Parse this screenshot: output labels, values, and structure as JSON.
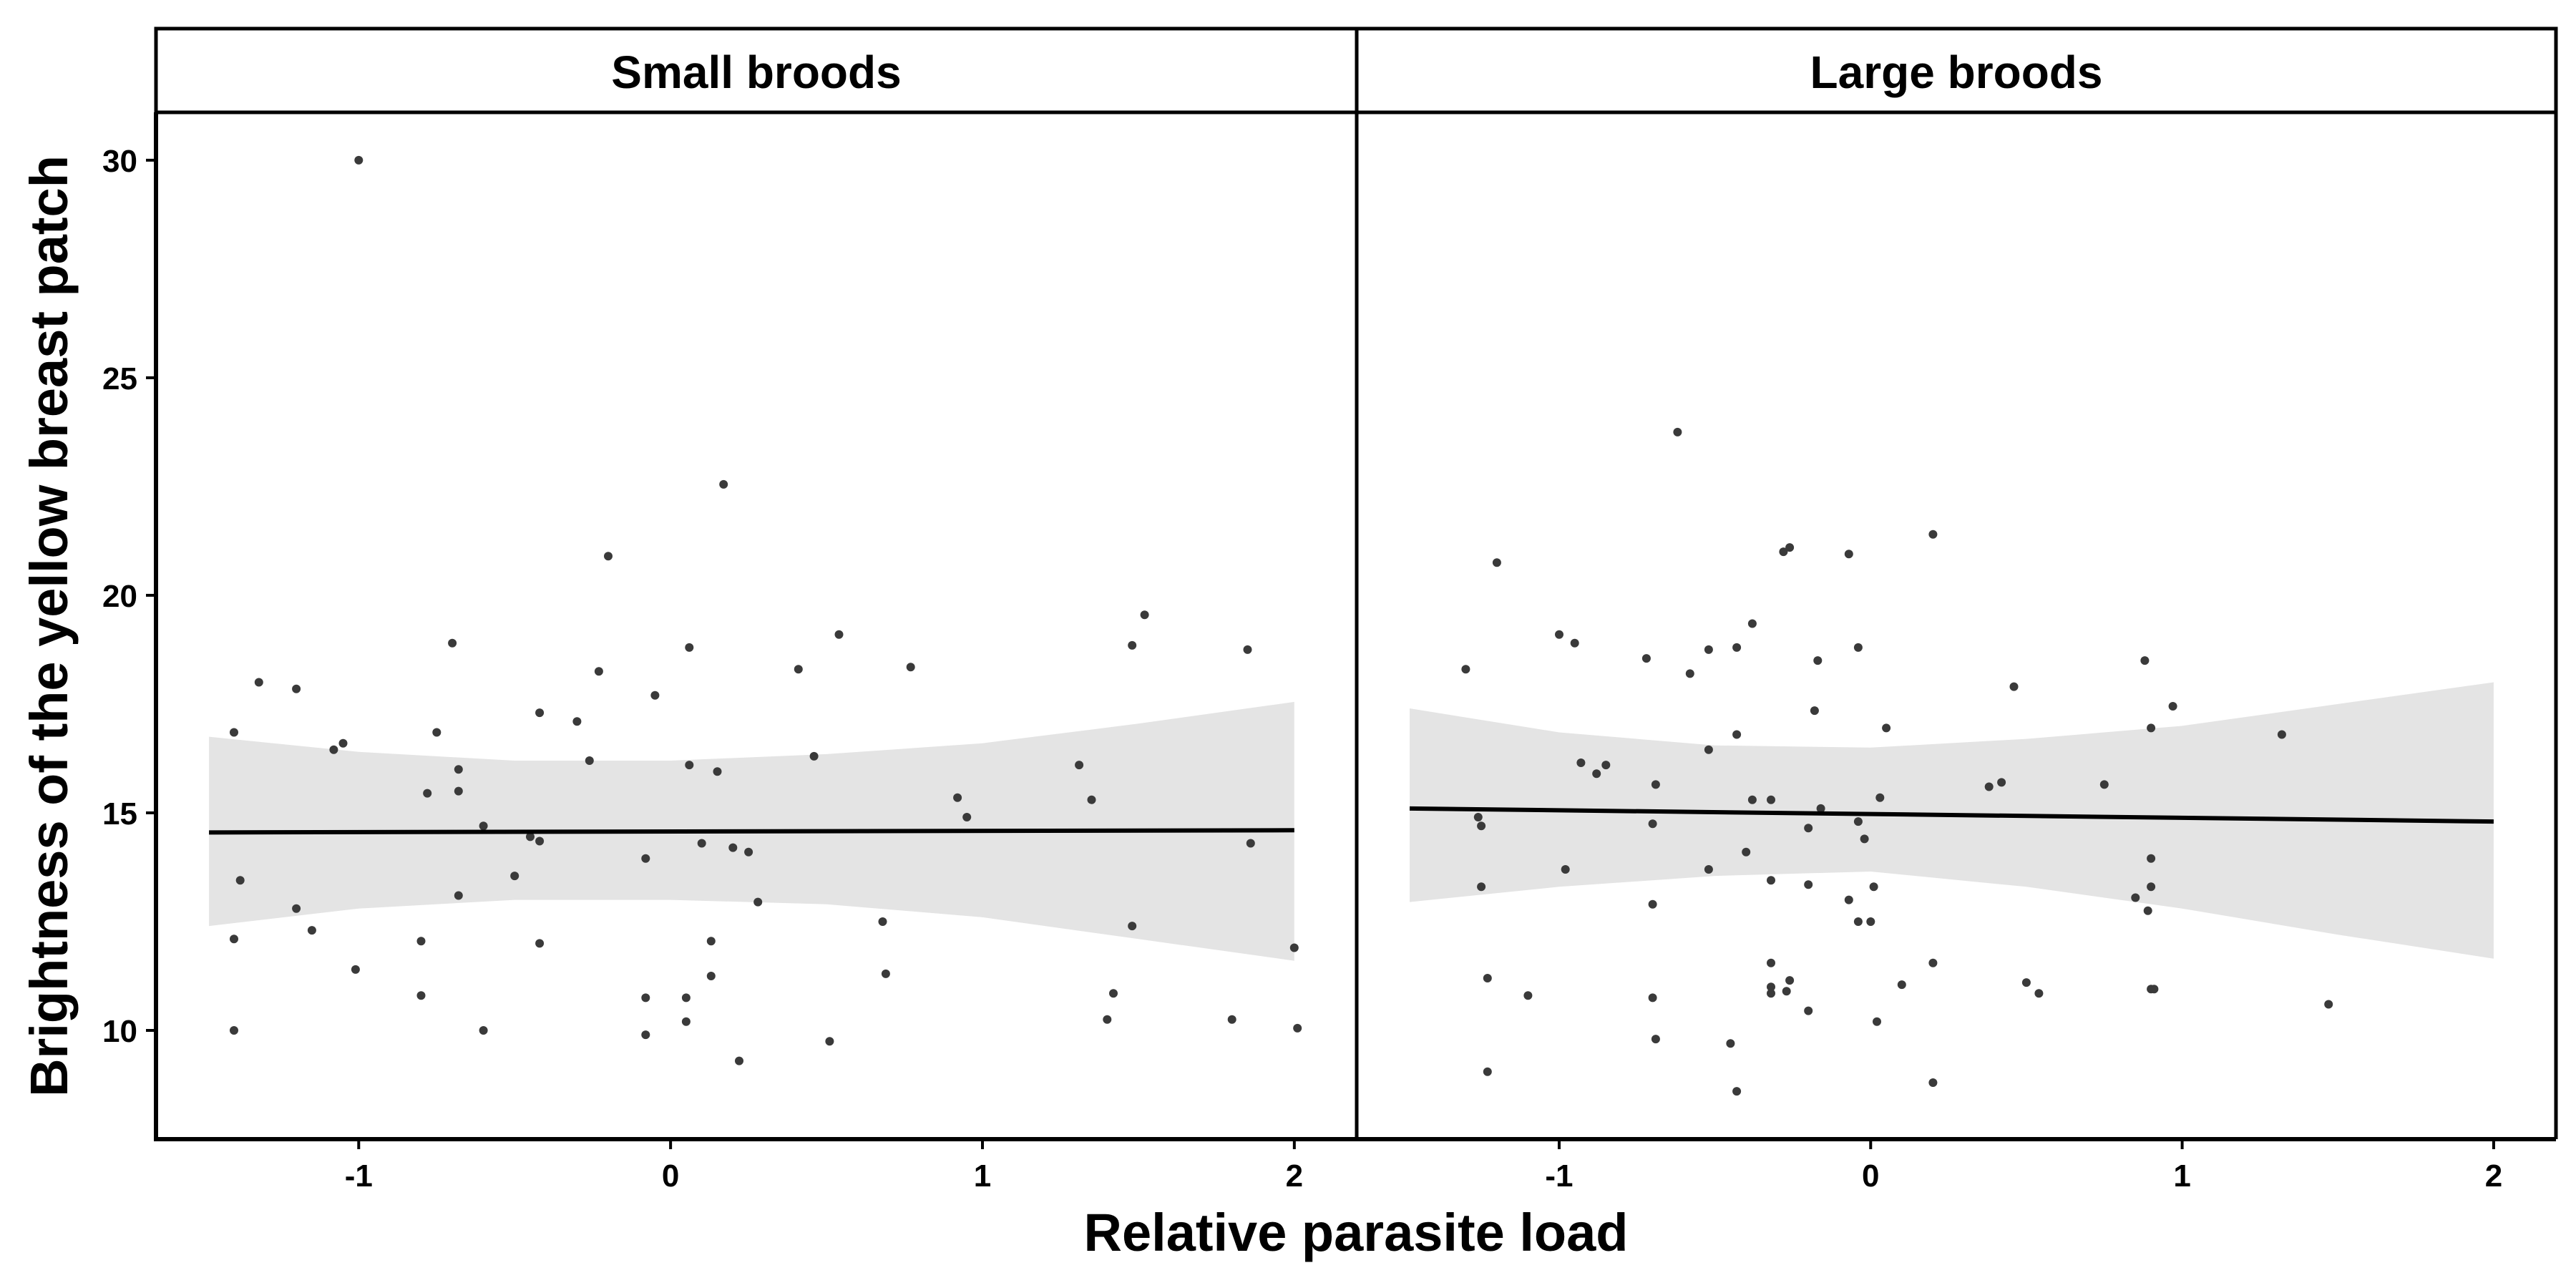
{
  "chart_data": {
    "type": "scatter",
    "xlabel": "Relative parasite load",
    "ylabel": "Brightness of the yellow breast patch",
    "xlim": [
      -1.65,
      2.2
    ],
    "ylim": [
      7.5,
      31.1
    ],
    "x_ticks": [
      -1,
      0,
      1,
      2
    ],
    "y_ticks": [
      10,
      15,
      20,
      25,
      30
    ],
    "grid": false,
    "legend": "none",
    "colors": {
      "point": "#3a3a3a",
      "line": "#000000",
      "band": "#e4e4e4"
    },
    "panels": [
      {
        "title": "Small broods",
        "fit": {
          "x": [
            -1.48,
            2.0
          ],
          "y": [
            14.55,
            14.6
          ]
        },
        "band": {
          "x": [
            -1.48,
            -1.0,
            -0.5,
            0,
            0.5,
            1.0,
            1.5,
            2.0
          ],
          "lower": [
            12.4,
            12.8,
            13.0,
            13.0,
            12.9,
            12.6,
            12.1,
            11.6
          ],
          "upper": [
            16.75,
            16.4,
            16.2,
            16.2,
            16.35,
            16.6,
            17.05,
            17.55
          ]
        },
        "points": [
          [
            -1.0,
            30.0
          ],
          [
            -1.4,
            16.85
          ],
          [
            -1.38,
            13.45
          ],
          [
            -1.4,
            12.1
          ],
          [
            -1.4,
            10.0
          ],
          [
            -1.32,
            18.0
          ],
          [
            -1.2,
            17.85
          ],
          [
            -1.2,
            12.8
          ],
          [
            -1.15,
            12.3
          ],
          [
            -1.08,
            16.45
          ],
          [
            -1.05,
            16.6
          ],
          [
            -1.01,
            11.4
          ],
          [
            -0.8,
            12.05
          ],
          [
            -0.8,
            10.8
          ],
          [
            -0.78,
            15.45
          ],
          [
            -0.75,
            16.85
          ],
          [
            -0.7,
            18.9
          ],
          [
            -0.68,
            16.0
          ],
          [
            -0.68,
            15.5
          ],
          [
            -0.68,
            13.1
          ],
          [
            -0.6,
            14.7
          ],
          [
            -0.6,
            10.0
          ],
          [
            -0.5,
            13.55
          ],
          [
            -0.45,
            14.45
          ],
          [
            -0.42,
            14.35
          ],
          [
            -0.42,
            17.3
          ],
          [
            -0.42,
            12.0
          ],
          [
            -0.3,
            17.1
          ],
          [
            -0.26,
            16.2
          ],
          [
            -0.23,
            18.25
          ],
          [
            -0.2,
            20.9
          ],
          [
            -0.08,
            10.75
          ],
          [
            -0.08,
            9.9
          ],
          [
            -0.08,
            13.95
          ],
          [
            -0.05,
            17.7
          ],
          [
            0.05,
            10.75
          ],
          [
            0.05,
            10.2
          ],
          [
            0.06,
            16.1
          ],
          [
            0.06,
            18.8
          ],
          [
            0.1,
            14.3
          ],
          [
            0.13,
            11.25
          ],
          [
            0.13,
            12.05
          ],
          [
            0.15,
            15.95
          ],
          [
            0.17,
            22.55
          ],
          [
            0.2,
            14.2
          ],
          [
            0.22,
            9.3
          ],
          [
            0.25,
            14.1
          ],
          [
            0.28,
            12.95
          ],
          [
            0.41,
            18.3
          ],
          [
            0.46,
            16.3
          ],
          [
            0.51,
            9.75
          ],
          [
            0.54,
            19.1
          ],
          [
            0.68,
            12.5
          ],
          [
            0.69,
            11.3
          ],
          [
            0.77,
            18.35
          ],
          [
            0.92,
            15.35
          ],
          [
            0.95,
            14.9
          ],
          [
            1.31,
            16.1
          ],
          [
            1.35,
            15.3
          ],
          [
            1.4,
            10.25
          ],
          [
            1.42,
            10.85
          ],
          [
            1.48,
            18.85
          ],
          [
            1.48,
            12.4
          ],
          [
            1.52,
            19.55
          ],
          [
            1.8,
            10.25
          ],
          [
            1.85,
            18.75
          ],
          [
            1.86,
            14.3
          ],
          [
            2.0,
            11.9
          ],
          [
            2.01,
            10.05
          ]
        ]
      },
      {
        "title": "Large broods",
        "fit": {
          "x": [
            -1.48,
            2.0
          ],
          "y": [
            15.1,
            14.8
          ]
        },
        "band": {
          "x": [
            -1.48,
            -1.0,
            -0.5,
            0,
            0.5,
            1.0,
            1.5,
            2.0
          ],
          "lower": [
            12.95,
            13.3,
            13.55,
            13.65,
            13.3,
            12.8,
            12.2,
            11.65
          ],
          "upper": [
            17.4,
            16.85,
            16.55,
            16.5,
            16.7,
            17.0,
            17.5,
            18.0
          ]
        },
        "points": [
          [
            -1.3,
            18.3
          ],
          [
            -1.26,
            14.9
          ],
          [
            -1.25,
            14.7
          ],
          [
            -1.25,
            13.3
          ],
          [
            -1.23,
            11.2
          ],
          [
            -1.23,
            9.05
          ],
          [
            -1.2,
            20.75
          ],
          [
            -1.1,
            10.8
          ],
          [
            -1.0,
            19.1
          ],
          [
            -0.98,
            13.7
          ],
          [
            -0.95,
            18.9
          ],
          [
            -0.93,
            16.15
          ],
          [
            -0.88,
            15.9
          ],
          [
            -0.85,
            16.1
          ],
          [
            -0.72,
            18.55
          ],
          [
            -0.7,
            14.75
          ],
          [
            -0.7,
            12.9
          ],
          [
            -0.7,
            10.75
          ],
          [
            -0.69,
            9.8
          ],
          [
            -0.69,
            15.65
          ],
          [
            -0.62,
            23.75
          ],
          [
            -0.58,
            18.2
          ],
          [
            -0.52,
            18.75
          ],
          [
            -0.52,
            16.45
          ],
          [
            -0.52,
            13.7
          ],
          [
            -0.45,
            9.7
          ],
          [
            -0.43,
            16.8
          ],
          [
            -0.43,
            18.8
          ],
          [
            -0.43,
            8.6
          ],
          [
            -0.4,
            14.1
          ],
          [
            -0.38,
            19.35
          ],
          [
            -0.38,
            15.3
          ],
          [
            -0.32,
            15.3
          ],
          [
            -0.32,
            13.45
          ],
          [
            -0.32,
            11.55
          ],
          [
            -0.32,
            11.0
          ],
          [
            -0.32,
            10.85
          ],
          [
            -0.28,
            21.0
          ],
          [
            -0.26,
            21.1
          ],
          [
            -0.26,
            11.15
          ],
          [
            -0.27,
            10.9
          ],
          [
            -0.2,
            14.65
          ],
          [
            -0.2,
            13.35
          ],
          [
            -0.2,
            10.45
          ],
          [
            -0.17,
            18.5
          ],
          [
            -0.18,
            17.35
          ],
          [
            -0.16,
            15.1
          ],
          [
            -0.07,
            20.95
          ],
          [
            -0.07,
            13.0
          ],
          [
            -0.04,
            18.8
          ],
          [
            -0.04,
            14.8
          ],
          [
            -0.04,
            12.5
          ],
          [
            -0.02,
            14.4
          ],
          [
            0.0,
            12.5
          ],
          [
            0.01,
            13.3
          ],
          [
            0.03,
            15.35
          ],
          [
            0.02,
            10.2
          ],
          [
            0.05,
            16.95
          ],
          [
            0.1,
            11.05
          ],
          [
            0.2,
            21.4
          ],
          [
            0.2,
            11.55
          ],
          [
            0.2,
            8.8
          ],
          [
            0.38,
            15.6
          ],
          [
            0.42,
            15.7
          ],
          [
            0.46,
            17.9
          ],
          [
            0.5,
            11.1
          ],
          [
            0.54,
            10.85
          ],
          [
            0.75,
            15.65
          ],
          [
            0.85,
            13.05
          ],
          [
            0.88,
            18.5
          ],
          [
            0.89,
            12.75
          ],
          [
            0.9,
            16.95
          ],
          [
            0.9,
            13.95
          ],
          [
            0.9,
            13.3
          ],
          [
            0.9,
            10.95
          ],
          [
            0.91,
            10.95
          ],
          [
            0.97,
            17.45
          ],
          [
            1.32,
            16.8
          ],
          [
            1.47,
            10.6
          ]
        ]
      }
    ]
  }
}
